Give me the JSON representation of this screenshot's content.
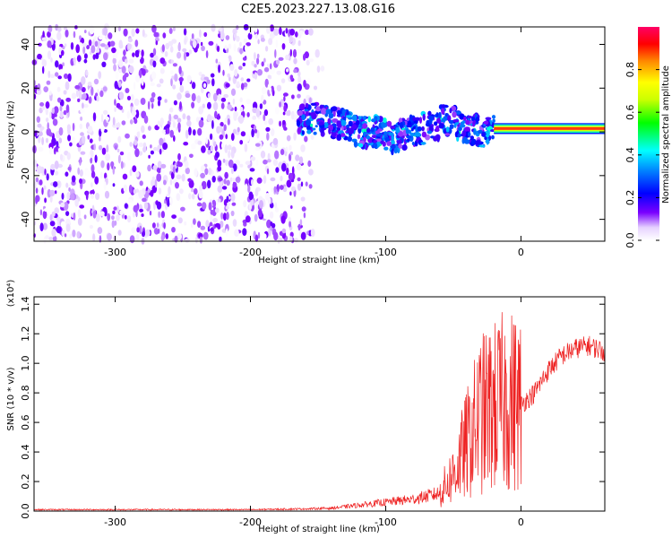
{
  "title": "C2E5.2023.227.13.08.G16",
  "chart_data": [
    {
      "type": "heatmap",
      "xlabel": "Height of straight line (km)",
      "ylabel": "Frequency (Hz)",
      "xlim": [
        -360,
        62
      ],
      "ylim": [
        -50,
        48
      ],
      "x_ticks": [
        "-300",
        "-200",
        "-100",
        "0"
      ],
      "y_ticks": [
        "40",
        "20",
        "0",
        "-20",
        "-40"
      ],
      "x_tick_values": [
        -300,
        -200,
        -100,
        0
      ],
      "y_tick_values": [
        40,
        20,
        0,
        -20,
        -40
      ],
      "colorbar": {
        "label": "Normalized spectral amplitude",
        "range": [
          0.0,
          1.0
        ],
        "ticks": [
          "0.0",
          "0.2",
          "0.4",
          "0.6",
          "0.8"
        ],
        "tick_values": [
          0.0,
          0.2,
          0.4,
          0.6,
          0.8
        ],
        "colormap": "rainbow (white - violet - blue - cyan - green - yellow - red - magenta)"
      },
      "regions": [
        {
          "x_range": [
            -360,
            -170
          ],
          "freq_range": [
            -50,
            48
          ],
          "amplitude_range": [
            0.0,
            0.15
          ],
          "description": "broadband noise"
        },
        {
          "x_range": [
            -165,
            -20
          ],
          "freq_center": 3,
          "freq_halfwidth": 7,
          "amplitude_range": [
            0.1,
            0.35
          ],
          "description": "wandering signal"
        },
        {
          "x_range": [
            -20,
            62
          ],
          "freq_center": 1.5,
          "freq_halfwidth": 2.5,
          "amplitude_range": [
            0.8,
            1.0
          ],
          "description": "stable tone"
        }
      ]
    },
    {
      "type": "line",
      "xlabel": "Height of straight line (km)",
      "ylabel": "SNR (10 * v/v)",
      "y_multiplier": "(x10⁴)",
      "xlim": [
        -360,
        62
      ],
      "ylim": [
        0.0,
        1.45
      ],
      "x_ticks": [
        "-300",
        "-200",
        "-100",
        "0"
      ],
      "y_ticks": [
        "0.0",
        "0.2",
        "0.4",
        "0.6",
        "0.8",
        "1.0",
        "1.2",
        "1.4"
      ],
      "x_tick_values": [
        -300,
        -200,
        -100,
        0
      ],
      "y_tick_values": [
        0.0,
        0.2,
        0.4,
        0.6,
        0.8,
        1.0,
        1.2,
        1.4
      ],
      "series": [
        {
          "color": "#ee2222",
          "x": [
            -360,
            -300,
            -250,
            -200,
            -160,
            -140,
            -120,
            -100,
            -80,
            -60,
            -50,
            -40,
            -30,
            -20,
            -10,
            0,
            10,
            20,
            30,
            40,
            50,
            62
          ],
          "y": [
            0.01,
            0.01,
            0.01,
            0.01,
            0.015,
            0.02,
            0.04,
            0.06,
            0.08,
            0.12,
            0.25,
            0.45,
            0.65,
            0.7,
            0.75,
            0.72,
            0.8,
            0.95,
            1.05,
            1.1,
            1.12,
            1.08
          ]
        }
      ]
    }
  ]
}
